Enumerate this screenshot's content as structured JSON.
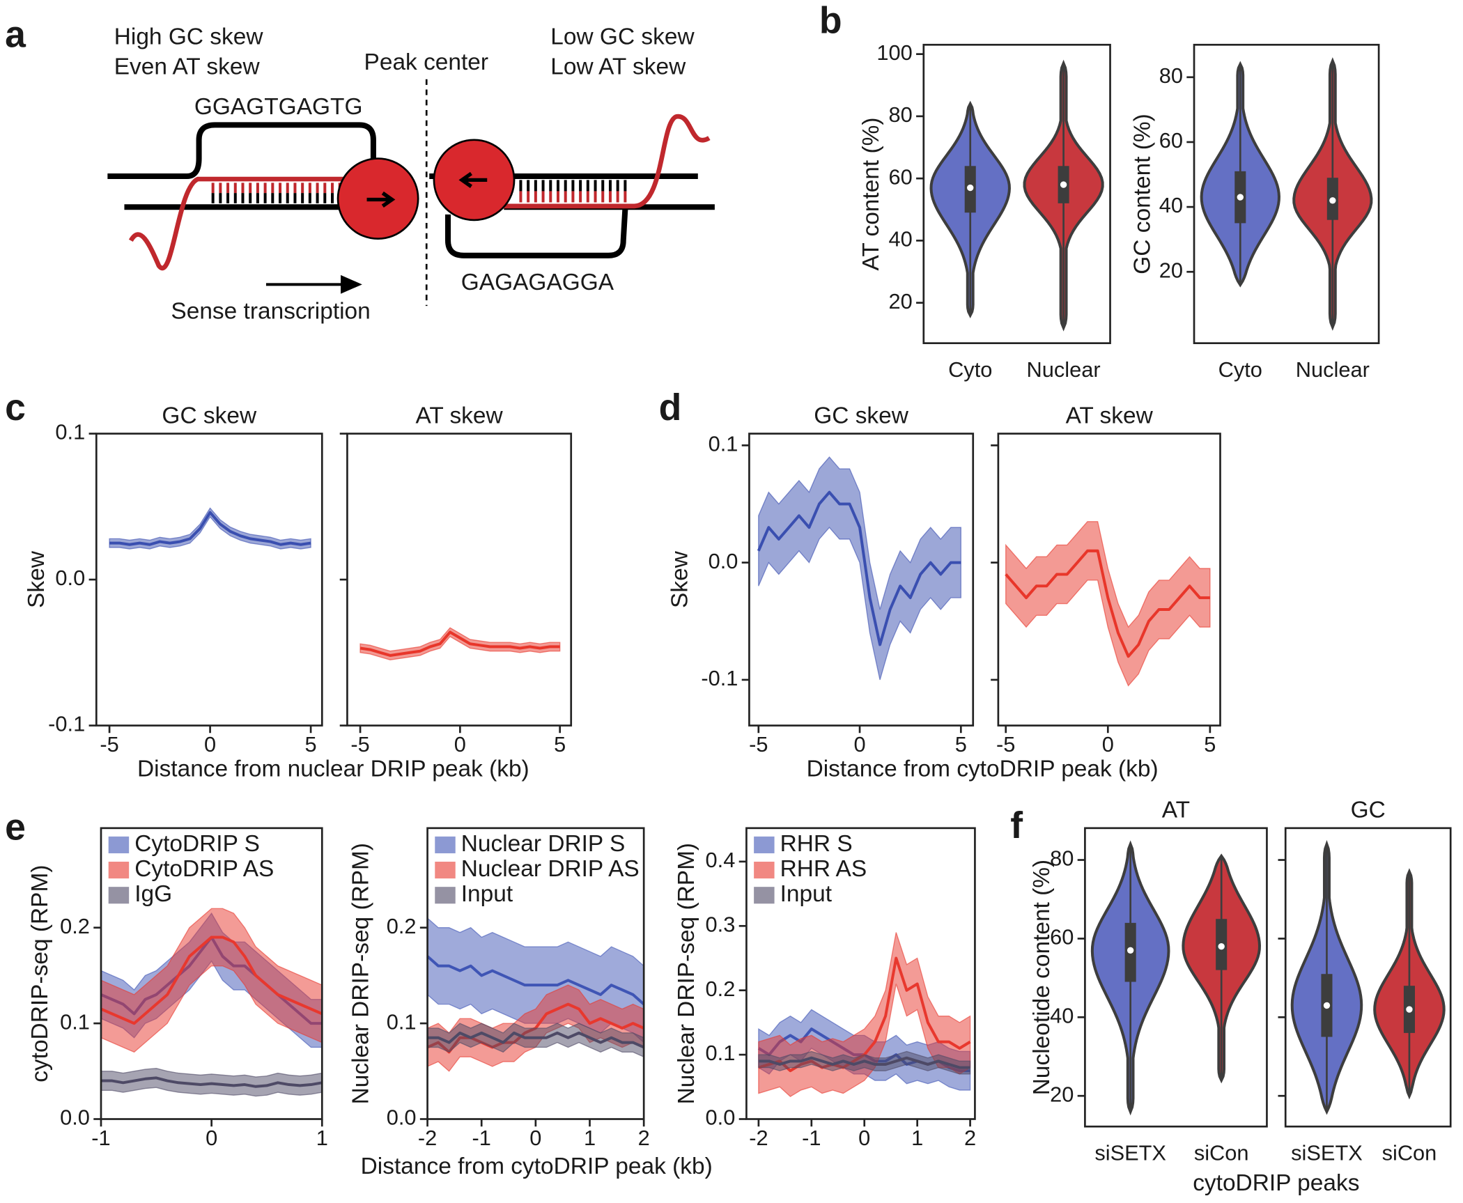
{
  "panels": [
    "a",
    "b",
    "c",
    "d",
    "e",
    "f"
  ],
  "diagram": {
    "left_top": "High GC skew",
    "left_bottom": "Even AT skew",
    "center": "Peak center",
    "right_top": "Low GC skew",
    "right_bottom": "Low AT skew",
    "top_seq": "GGAGTGAGTG",
    "bottom_seq": "GAGAGAGGA",
    "arrow": "Sense transcription"
  },
  "chart_data": [
    {
      "type": "violin",
      "ylabel": "AT content (%)",
      "categories": [
        "Cyto",
        "Nuclear"
      ],
      "colors": [
        "#6470c4",
        "#c8383e"
      ],
      "min": [
        16,
        12
      ],
      "q1": [
        49,
        52
      ],
      "median": [
        57,
        58
      ],
      "q3": [
        64,
        64
      ],
      "max": [
        84,
        97
      ],
      "ylim": [
        7,
        103
      ],
      "yticks": [
        20,
        40,
        60,
        80,
        100
      ]
    },
    {
      "type": "violin",
      "ylabel": "GC content (%)",
      "categories": [
        "Cyto",
        "Nuclear"
      ],
      "colors": [
        "#6470c4",
        "#c8383e"
      ],
      "min": [
        16,
        3
      ],
      "q1": [
        35,
        36
      ],
      "median": [
        43,
        42
      ],
      "q3": [
        51,
        49
      ],
      "max": [
        84,
        85
      ],
      "ylim": [
        -2,
        90
      ],
      "yticks": [
        20,
        40,
        60,
        80
      ]
    },
    {
      "type": "line",
      "title": "GC skew",
      "ylabel": "Skew",
      "xlabel": "Distance from nuclear DRIP peak (kb)",
      "x": [
        -5,
        -4.5,
        -4,
        -3.5,
        -3,
        -2.5,
        -2,
        -1.5,
        -1,
        -0.5,
        0,
        0.5,
        1,
        1.5,
        2,
        2.5,
        3,
        3.5,
        4,
        4.5,
        5
      ],
      "series": [
        {
          "color": "#3a4fb0",
          "ci": 0.003,
          "values": [
            0.025,
            0.025,
            0.024,
            0.025,
            0.024,
            0.026,
            0.025,
            0.026,
            0.028,
            0.035,
            0.046,
            0.038,
            0.033,
            0.03,
            0.028,
            0.027,
            0.026,
            0.024,
            0.025,
            0.024,
            0.025
          ]
        }
      ],
      "xlim": [
        -5.65,
        5.56
      ],
      "xticks": [
        -5,
        0,
        5
      ],
      "ylim": [
        -0.1,
        0.1
      ],
      "yticks": [
        -0.1,
        {
          "value": 0,
          "label": "0.0"
        },
        0.1
      ]
    },
    {
      "type": "line",
      "title": "AT skew",
      "ytick_labels": false,
      "x": [
        -5,
        -4.5,
        -4,
        -3.5,
        -3,
        -2.5,
        -2,
        -1.5,
        -1,
        -0.5,
        0,
        0.5,
        1,
        1.5,
        2,
        2.5,
        3,
        3.5,
        4,
        4.5,
        5
      ],
      "series": [
        {
          "color": "#e8362a",
          "ci": 0.003,
          "values": [
            -0.047,
            -0.048,
            -0.05,
            -0.052,
            -0.051,
            -0.05,
            -0.049,
            -0.046,
            -0.044,
            -0.036,
            -0.04,
            -0.044,
            -0.045,
            -0.046,
            -0.046,
            -0.046,
            -0.047,
            -0.046,
            -0.047,
            -0.046,
            -0.046
          ]
        }
      ],
      "xlim": [
        -5.65,
        5.56
      ],
      "xticks": [
        -5,
        0,
        5
      ],
      "ylim": [
        -0.1,
        0.1
      ],
      "yticks": [
        -0.1,
        0,
        0.1
      ]
    },
    {
      "type": "line",
      "title": "GC skew",
      "ylabel": "Skew",
      "xlabel": "Distance from cytoDRIP peak (kb)",
      "x": [
        -5,
        -4.5,
        -4,
        -3.5,
        -3,
        -2.5,
        -2,
        -1.5,
        -1,
        -0.5,
        0,
        0.5,
        1,
        1.5,
        2,
        2.5,
        3,
        3.5,
        4,
        4.5,
        5
      ],
      "series": [
        {
          "color": "#3a4fb0",
          "ci": 0.03,
          "values": [
            0.01,
            0.03,
            0.02,
            0.03,
            0.04,
            0.03,
            0.05,
            0.06,
            0.05,
            0.05,
            0.03,
            -0.03,
            -0.07,
            -0.04,
            -0.02,
            -0.03,
            -0.01,
            0.0,
            -0.01,
            0.0,
            0.0
          ]
        }
      ],
      "xlim": [
        -5.46,
        5.6
      ],
      "xticks": [
        -5,
        0,
        5
      ],
      "ylim": [
        -0.139,
        0.11
      ],
      "yticks": [
        -0.1,
        {
          "value": 0,
          "label": "0.0"
        },
        0.1
      ]
    },
    {
      "type": "line",
      "title": "AT skew",
      "ytick_labels": false,
      "x": [
        -5,
        -4.5,
        -4,
        -3.5,
        -3,
        -2.5,
        -2,
        -1.5,
        -1,
        -0.5,
        0,
        0.5,
        1,
        1.5,
        2,
        2.5,
        3,
        3.5,
        4,
        4.5,
        5
      ],
      "series": [
        {
          "color": "#e8362a",
          "ci": 0.025,
          "values": [
            -0.01,
            -0.02,
            -0.03,
            -0.02,
            -0.02,
            -0.01,
            -0.01,
            0.0,
            0.01,
            0.01,
            -0.03,
            -0.06,
            -0.08,
            -0.07,
            -0.05,
            -0.04,
            -0.04,
            -0.03,
            -0.02,
            -0.03,
            -0.03
          ]
        }
      ],
      "xlim": [
        -5.37,
        5.5
      ],
      "xticks": [
        -5,
        0,
        5
      ],
      "ylim": [
        -0.139,
        0.11
      ],
      "yticks": [
        -0.1,
        0,
        0.1
      ]
    },
    {
      "type": "line",
      "ylabel": "cytoDRIP-seq (RPM)",
      "legend": "upper left",
      "x": [
        -1,
        -0.9,
        -0.8,
        -0.7,
        -0.6,
        -0.5,
        -0.4,
        -0.3,
        -0.2,
        -0.1,
        0,
        0.1,
        0.2,
        0.3,
        0.4,
        0.5,
        0.6,
        0.7,
        0.8,
        0.9,
        1
      ],
      "series": [
        {
          "name": "CytoDRIP S",
          "color": "#3f55b5",
          "ci": 0.025,
          "values": [
            0.13,
            0.125,
            0.12,
            0.11,
            0.125,
            0.13,
            0.14,
            0.15,
            0.16,
            0.175,
            0.19,
            0.17,
            0.16,
            0.16,
            0.15,
            0.14,
            0.13,
            0.12,
            0.11,
            0.1,
            0.1
          ]
        },
        {
          "name": "CytoDRIP AS",
          "color": "#e8382e",
          "ci": 0.03,
          "values": [
            0.115,
            0.11,
            0.105,
            0.1,
            0.11,
            0.12,
            0.13,
            0.15,
            0.17,
            0.18,
            0.19,
            0.19,
            0.185,
            0.17,
            0.15,
            0.14,
            0.13,
            0.125,
            0.12,
            0.115,
            0.11
          ]
        },
        {
          "name": "IgG",
          "color": "#4e4a66",
          "ci": 0.01,
          "values": [
            0.04,
            0.04,
            0.038,
            0.04,
            0.042,
            0.043,
            0.04,
            0.038,
            0.037,
            0.036,
            0.037,
            0.036,
            0.035,
            0.036,
            0.034,
            0.035,
            0.038,
            0.036,
            0.035,
            0.036,
            0.038
          ]
        }
      ],
      "xlim": [
        -1,
        1
      ],
      "xticks": [
        -1,
        0,
        1
      ],
      "ylim": [
        0,
        0.304
      ],
      "yticks": [
        {
          "value": 0,
          "label": "0.0"
        },
        0.1,
        0.2
      ]
    },
    {
      "type": "line",
      "ylabel": "Nuclear DRIP-seq (RPM)",
      "xlabel": "Distance from cytoDRIP peak (kb)",
      "legend": "upper left",
      "x": [
        -2,
        -1.8,
        -1.6,
        -1.4,
        -1.2,
        -1,
        -0.8,
        -0.6,
        -0.4,
        -0.2,
        0,
        0.2,
        0.4,
        0.6,
        0.8,
        1,
        1.2,
        1.4,
        1.6,
        1.8,
        2
      ],
      "series": [
        {
          "name": "Nuclear DRIP S",
          "color": "#3f55b5",
          "ci": 0.04,
          "values": [
            0.17,
            0.16,
            0.16,
            0.155,
            0.16,
            0.15,
            0.155,
            0.15,
            0.145,
            0.14,
            0.14,
            0.14,
            0.14,
            0.145,
            0.14,
            0.135,
            0.13,
            0.14,
            0.135,
            0.13,
            0.12
          ]
        },
        {
          "name": "Nuclear DRIP AS",
          "color": "#e8382e",
          "ci": 0.02,
          "values": [
            0.075,
            0.08,
            0.07,
            0.085,
            0.085,
            0.08,
            0.075,
            0.08,
            0.08,
            0.09,
            0.095,
            0.11,
            0.115,
            0.12,
            0.115,
            0.1,
            0.105,
            0.1,
            0.095,
            0.1,
            0.095
          ]
        },
        {
          "name": "Input",
          "color": "#4e4a66",
          "ci": 0.01,
          "values": [
            0.085,
            0.085,
            0.08,
            0.09,
            0.085,
            0.09,
            0.085,
            0.08,
            0.09,
            0.085,
            0.085,
            0.085,
            0.09,
            0.085,
            0.09,
            0.085,
            0.08,
            0.085,
            0.08,
            0.08,
            0.075
          ]
        }
      ],
      "xlim": [
        -2,
        2
      ],
      "xticks": [
        -2,
        -1,
        0,
        1,
        2
      ],
      "ylim": [
        0,
        0.304
      ],
      "yticks": [
        {
          "value": 0,
          "label": "0.0"
        },
        0.1,
        0.2
      ]
    },
    {
      "type": "line",
      "ylabel": "Nuclear DRIP-seq (RPM)",
      "legend": "upper left",
      "x": [
        -2,
        -1.8,
        -1.6,
        -1.4,
        -1.2,
        -1,
        -0.8,
        -0.6,
        -0.4,
        -0.2,
        0,
        0.2,
        0.4,
        0.6,
        0.8,
        1,
        1.2,
        1.4,
        1.6,
        1.8,
        2
      ],
      "series": [
        {
          "name": "RHR S",
          "color": "#3f55b5",
          "ci": 0.03,
          "values": [
            0.11,
            0.1,
            0.12,
            0.13,
            0.12,
            0.14,
            0.13,
            0.12,
            0.11,
            0.1,
            0.1,
            0.09,
            0.09,
            0.1,
            0.085,
            0.09,
            0.085,
            0.09,
            0.08,
            0.075,
            0.075
          ]
        },
        {
          "name": "RHR AS",
          "color": "#e8382e",
          "ci": 0.04,
          "values": [
            0.08,
            0.085,
            0.09,
            0.075,
            0.085,
            0.09,
            0.08,
            0.085,
            0.08,
            0.09,
            0.1,
            0.12,
            0.16,
            0.25,
            0.2,
            0.21,
            0.15,
            0.12,
            0.12,
            0.11,
            0.12
          ]
        },
        {
          "name": "Input",
          "color": "#4e4a66",
          "ci": 0.01,
          "values": [
            0.09,
            0.09,
            0.085,
            0.09,
            0.09,
            0.095,
            0.09,
            0.085,
            0.09,
            0.085,
            0.09,
            0.085,
            0.085,
            0.09,
            0.095,
            0.09,
            0.085,
            0.09,
            0.085,
            0.08,
            0.08
          ]
        }
      ],
      "xlim": [
        -2.23,
        2.09
      ],
      "xticks": [
        -2,
        -1,
        0,
        1,
        2
      ],
      "ylim": [
        0,
        0.452
      ],
      "yticks": [
        {
          "value": 0,
          "label": "0.0"
        },
        0.1,
        0.2,
        0.3,
        0.4
      ]
    },
    {
      "type": "violin",
      "title": "AT",
      "ylabel": "Nucleotide content (%)",
      "xlabel": "cytoDRIP peaks",
      "categories": [
        "siSETX",
        "siCon"
      ],
      "colors": [
        "#6470c4",
        "#c8383e"
      ],
      "min": [
        16,
        24
      ],
      "q1": [
        49,
        52
      ],
      "median": [
        57,
        58
      ],
      "q3": [
        64,
        65
      ],
      "max": [
        84,
        81
      ],
      "ylim": [
        12.2,
        88.1
      ],
      "yticks": [
        20,
        40,
        60,
        80
      ]
    },
    {
      "type": "violin",
      "title": "GC",
      "ytick_labels": false,
      "categories": [
        "siSETX",
        "siCon"
      ],
      "colors": [
        "#6470c4",
        "#c8383e"
      ],
      "min": [
        16,
        20
      ],
      "q1": [
        35,
        36
      ],
      "median": [
        43,
        42
      ],
      "q3": [
        51,
        48
      ],
      "max": [
        84,
        77
      ],
      "ylim": [
        12.2,
        88.1
      ],
      "yticks": [
        20,
        40,
        60,
        80
      ]
    }
  ]
}
